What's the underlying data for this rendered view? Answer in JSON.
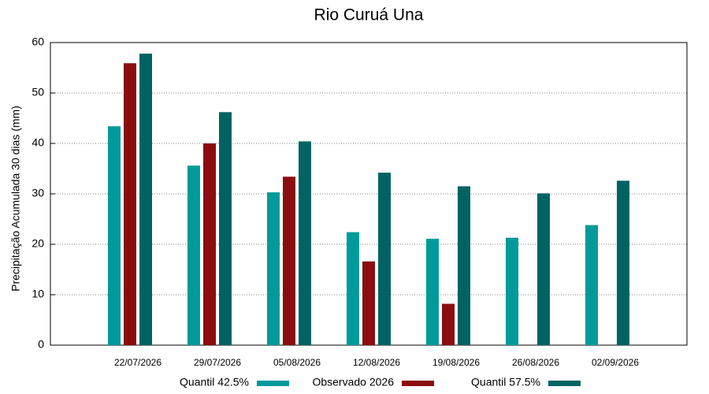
{
  "chart_data": {
    "type": "bar",
    "title": "Rio Curuá Una",
    "y_label": "Precipitação Acumulada 30 dias (mm)",
    "categories": [
      "22/07/2026",
      "29/07/2026",
      "05/08/2026",
      "12/08/2026",
      "19/08/2026",
      "26/08/2026",
      "02/09/2026"
    ],
    "series": [
      {
        "name": "Quantil 42.5%",
        "color": "#009a9a",
        "values": [
          43.4,
          35.6,
          30.3,
          22.4,
          21.1,
          21.3,
          23.8
        ]
      },
      {
        "name": "Observado 2026",
        "color": "#8b0d10",
        "values": [
          55.9,
          40.0,
          33.4,
          16.6,
          8.2,
          null,
          null
        ]
      },
      {
        "name": "Quantil 57.5%",
        "color": "#006363",
        "values": [
          57.8,
          46.2,
          40.4,
          34.2,
          31.5,
          30.1,
          32.6
        ]
      }
    ],
    "ylim": [
      0,
      60
    ],
    "yticks": [
      0,
      10,
      20,
      30,
      40,
      50,
      60
    ],
    "grid": true
  }
}
